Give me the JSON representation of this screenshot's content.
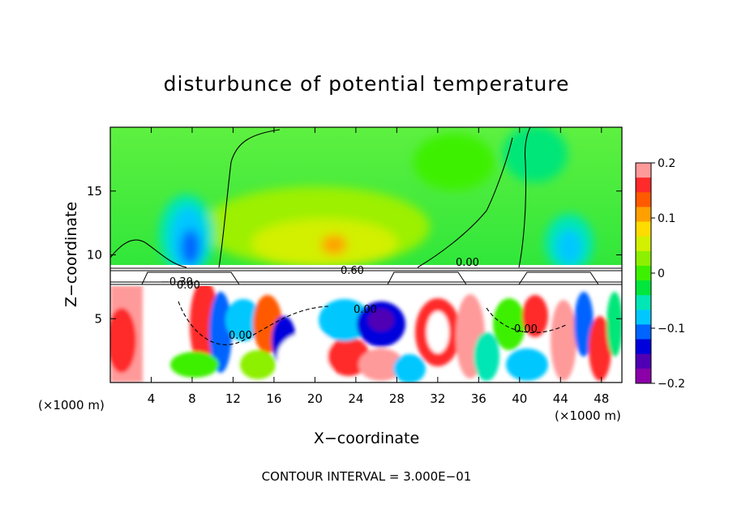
{
  "chart_data": {
    "type": "heatmap",
    "title": "disturbunce of potential temperature",
    "xlabel": "X−coordinate",
    "ylabel": "Z−coordinate",
    "x_unit_left": "(×1000 m)",
    "x_unit_right": "(×1000 m)",
    "xlim": [
      0,
      50
    ],
    "ylim": [
      0,
      20
    ],
    "x_ticks": [
      "4",
      "8",
      "12",
      "16",
      "20",
      "24",
      "28",
      "32",
      "36",
      "40",
      "44",
      "48"
    ],
    "y_ticks": [
      "5",
      "10",
      "15"
    ],
    "colorbar": {
      "range": [
        -0.2,
        0.2
      ],
      "tick_labels": [
        "0.2",
        "0.1",
        "0",
        "−0.1",
        "−0.2"
      ],
      "colors": [
        "#ff9a9a",
        "#ff2a2a",
        "#ff5a00",
        "#ffa000",
        "#ffdc00",
        "#d2f000",
        "#8cf000",
        "#3cf000",
        "#00e63c",
        "#00e6b4",
        "#00c8ff",
        "#0064ff",
        "#0000dc",
        "#5000b4",
        "#8c00aa"
      ]
    },
    "contour_labels": [
      "0.60",
      "0.00",
      "0.00",
      "0.00",
      "0.00",
      "0.00",
      "−0.30"
    ],
    "footer": "CONTOUR INTERVAL = 3.000E−01"
  }
}
